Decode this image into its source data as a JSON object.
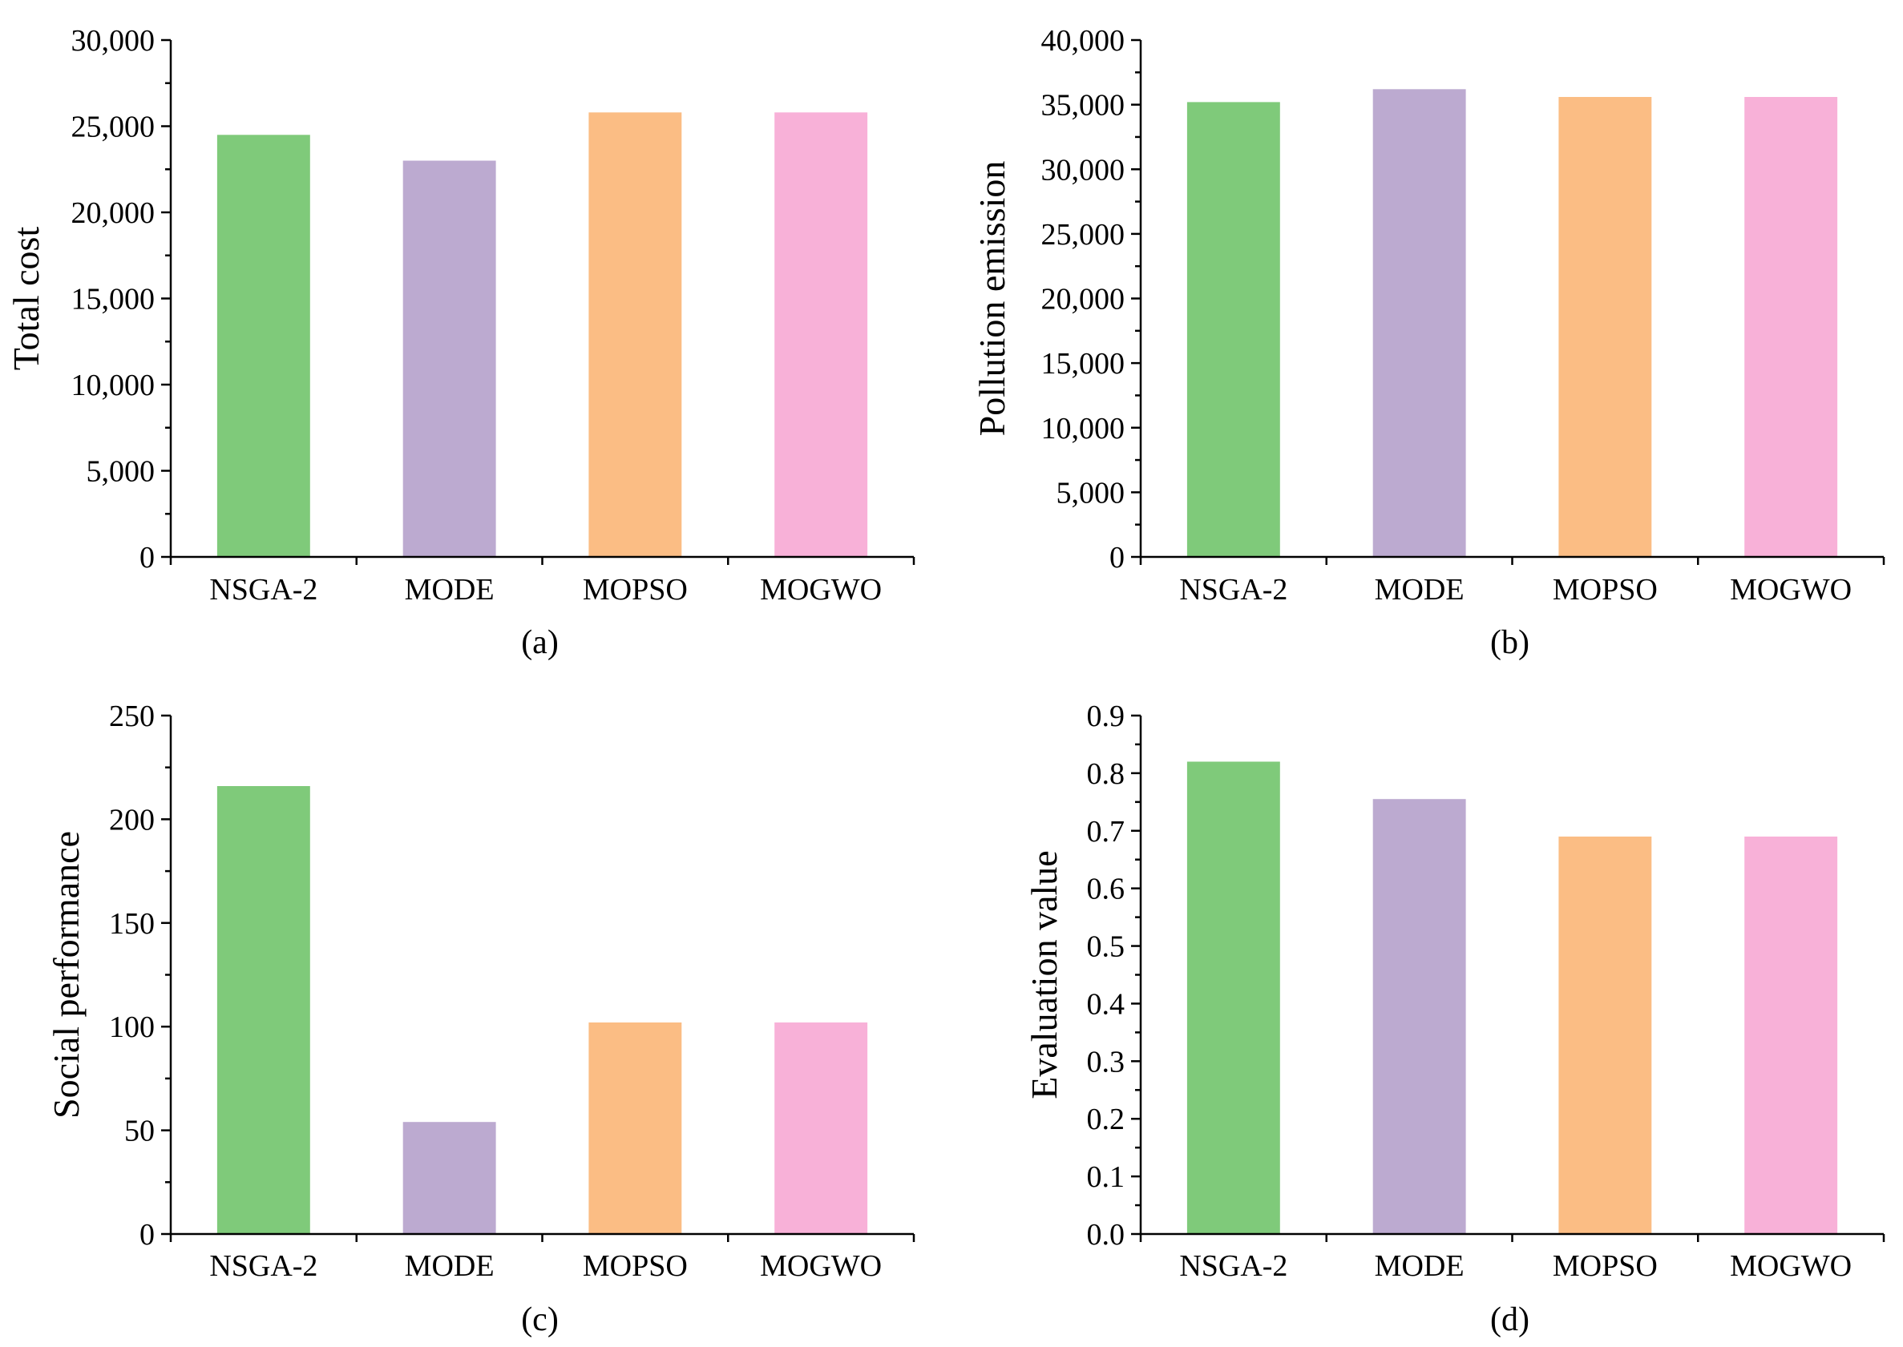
{
  "colors": {
    "NSGA-2": "#7fca7a",
    "MODE": "#bcaad0",
    "MOPSO": "#fbbd84",
    "MOGWO": "#f8b1d8"
  },
  "chart_data": [
    {
      "type": "bar",
      "panel_label": "(a)",
      "categories": [
        "NSGA-2",
        "MODE",
        "MOPSO",
        "MOGWO"
      ],
      "values": [
        24500,
        23000,
        25800,
        25800
      ],
      "xlabel": "",
      "ylabel": "Total cost",
      "ylim": [
        0,
        30000
      ],
      "yticks": [
        0,
        5000,
        10000,
        15000,
        20000,
        25000,
        30000
      ],
      "ytick_labels": [
        "0",
        "5,000",
        "10,000",
        "15,000",
        "20,000",
        "25,000",
        "30,000"
      ],
      "grid": false,
      "legend": "none"
    },
    {
      "type": "bar",
      "panel_label": "(b)",
      "categories": [
        "NSGA-2",
        "MODE",
        "MOPSO",
        "MOGWO"
      ],
      "values": [
        35200,
        36200,
        35600,
        35600
      ],
      "xlabel": "",
      "ylabel": "Pollution emission",
      "ylim": [
        0,
        40000
      ],
      "yticks": [
        0,
        5000,
        10000,
        15000,
        20000,
        25000,
        30000,
        35000,
        40000
      ],
      "ytick_labels": [
        "0",
        "5,000",
        "10,000",
        "15,000",
        "20,000",
        "25,000",
        "30,000",
        "35,000",
        "40,000"
      ],
      "grid": false,
      "legend": "none"
    },
    {
      "type": "bar",
      "panel_label": "(c)",
      "categories": [
        "NSGA-2",
        "MODE",
        "MOPSO",
        "MOGWO"
      ],
      "values": [
        216,
        54,
        102,
        102
      ],
      "xlabel": "",
      "ylabel": "Social performance",
      "ylim": [
        0,
        250
      ],
      "yticks": [
        0,
        50,
        100,
        150,
        200,
        250
      ],
      "ytick_labels": [
        "0",
        "50",
        "100",
        "150",
        "200",
        "250"
      ],
      "grid": false,
      "legend": "none"
    },
    {
      "type": "bar",
      "panel_label": "(d)",
      "categories": [
        "NSGA-2",
        "MODE",
        "MOPSO",
        "MOGWO"
      ],
      "values": [
        0.82,
        0.755,
        0.69,
        0.69
      ],
      "xlabel": "",
      "ylabel": "Evaluation value",
      "ylim": [
        0,
        0.9
      ],
      "yticks": [
        0,
        0.1,
        0.2,
        0.3,
        0.4,
        0.5,
        0.6,
        0.7,
        0.8,
        0.9
      ],
      "ytick_labels": [
        "0.0",
        "0.1",
        "0.2",
        "0.3",
        "0.4",
        "0.5",
        "0.6",
        "0.7",
        "0.8",
        "0.9"
      ],
      "grid": false,
      "legend": "none"
    }
  ]
}
